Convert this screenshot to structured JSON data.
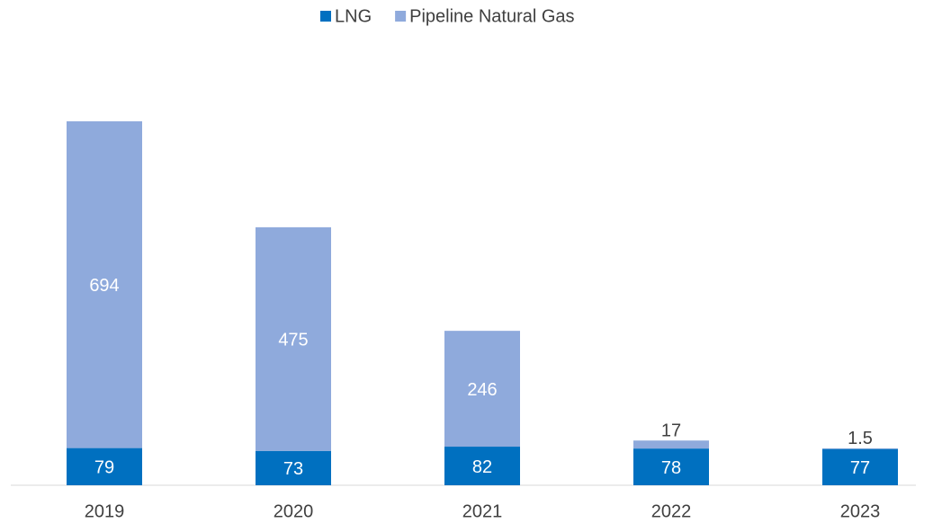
{
  "chart_data": {
    "type": "stacked_bar",
    "categories": [
      "2019",
      "2020",
      "2021",
      "2022",
      "2023"
    ],
    "series": [
      {
        "name": "LNG",
        "color": "#0070c0",
        "values": [
          79,
          73,
          82,
          78,
          77
        ]
      },
      {
        "name": "Pipeline Natural Gas",
        "color": "#8faadc",
        "values": [
          694,
          475,
          246,
          17,
          1.5
        ]
      }
    ],
    "legend": "top"
  }
}
